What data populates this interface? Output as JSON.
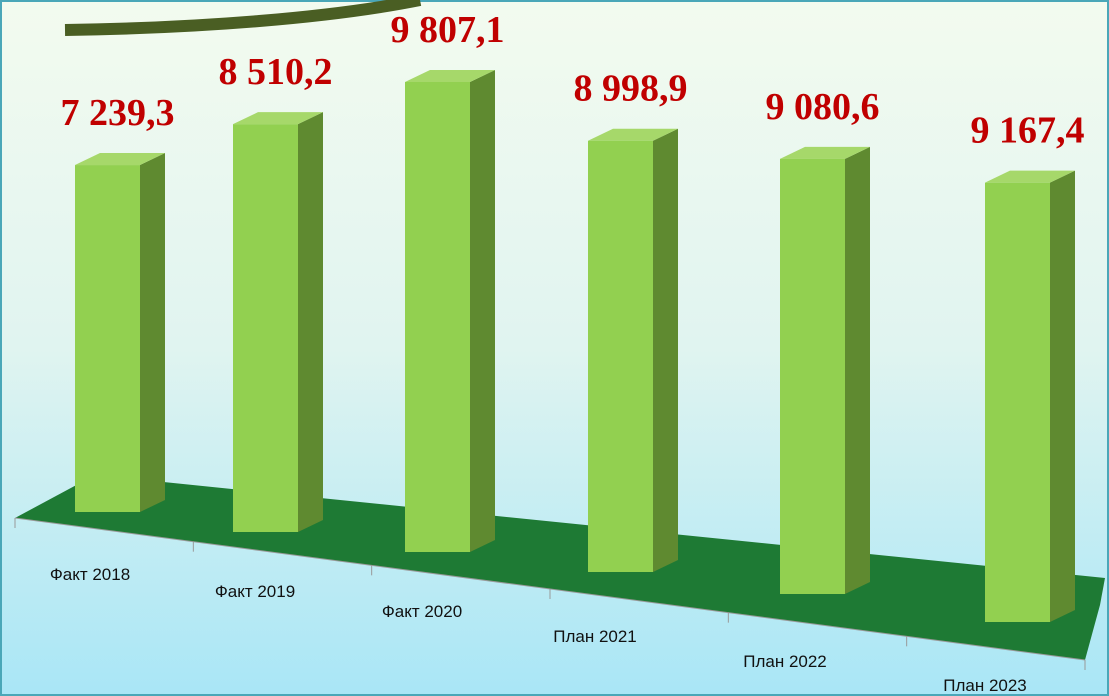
{
  "chart_data": {
    "type": "bar",
    "categories": [
      "Факт 2018",
      "Факт 2019",
      "Факт 2020",
      "План 2021",
      "План 2022",
      "План 2023"
    ],
    "values": [
      7239.3,
      8510.2,
      9807.1,
      8998.9,
      9080.6,
      9167.4
    ],
    "value_labels": [
      "7 239,3",
      "8 510,2",
      "9 807,1",
      "8 998,9",
      "9 080,6",
      "9 167,4"
    ],
    "color": "#92d050"
  }
}
